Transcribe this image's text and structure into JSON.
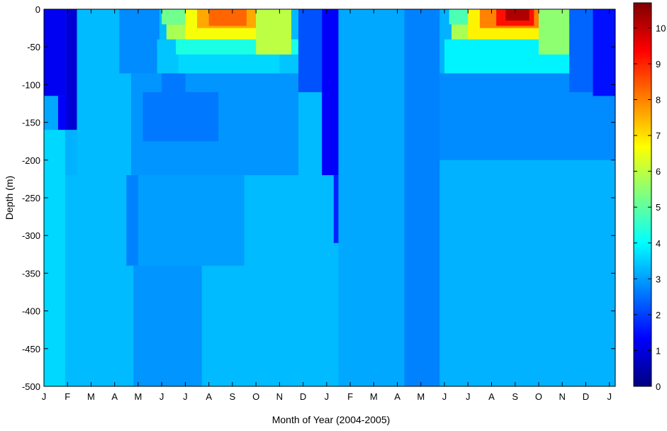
{
  "chart_data": {
    "type": "heatmap",
    "xlabel": "Month of Year (2004-2005)",
    "ylabel": "Depth (m)",
    "x_ticks": [
      "J",
      "F",
      "M",
      "A",
      "M",
      "J",
      "J",
      "A",
      "S",
      "O",
      "N",
      "D",
      "J",
      "F",
      "M",
      "A",
      "M",
      "J",
      "J",
      "A",
      "S",
      "O",
      "N",
      "D",
      "J"
    ],
    "x_range_months": [
      0,
      24.25
    ],
    "y_ticks": [
      0,
      -50,
      -100,
      -150,
      -200,
      -250,
      -300,
      -350,
      -400,
      -450,
      -500
    ],
    "y_range": [
      -500,
      0
    ],
    "colorbar": {
      "colormap": "jet",
      "range": [
        0,
        10.7
      ],
      "ticks": [
        0,
        1,
        2,
        3,
        4,
        5,
        6,
        7,
        8,
        9,
        10
      ]
    },
    "background_value": 3.3,
    "regions": [
      {
        "t0": 0.0,
        "t1": 0.95,
        "d0": 0,
        "d1": -115,
        "v": 1.2
      },
      {
        "t0": 0.0,
        "t1": 0.6,
        "d0": -115,
        "d1": -160,
        "v": 3.1
      },
      {
        "t0": 0.6,
        "t1": 1.0,
        "d0": -115,
        "d1": -160,
        "v": 1.3
      },
      {
        "t0": 0.95,
        "t1": 1.4,
        "d0": 0,
        "d1": -160,
        "v": 0.9
      },
      {
        "t0": 0.0,
        "t1": 0.9,
        "d0": -160,
        "d1": -500,
        "v": 3.6
      },
      {
        "t0": 0.9,
        "t1": 1.4,
        "d0": -160,
        "d1": -220,
        "v": 3.2
      },
      {
        "t0": 1.4,
        "t1": 3.2,
        "d0": 0,
        "d1": -500,
        "v": 3.3
      },
      {
        "t0": 3.2,
        "t1": 4.9,
        "d0": 0,
        "d1": -85,
        "v": 2.8
      },
      {
        "t0": 3.7,
        "t1": 10.8,
        "d0": -85,
        "d1": -220,
        "v": 2.9
      },
      {
        "t0": 3.5,
        "t1": 4.0,
        "d0": -220,
        "d1": -340,
        "v": 2.7
      },
      {
        "t0": 3.8,
        "t1": 6.7,
        "d0": -340,
        "d1": -500,
        "v": 2.9
      },
      {
        "t0": 4.0,
        "t1": 8.5,
        "d0": -220,
        "d1": -340,
        "v": 3.0
      },
      {
        "t0": 4.2,
        "t1": 7.4,
        "d0": -110,
        "d1": -175,
        "v": 2.6
      },
      {
        "t0": 4.8,
        "t1": 10.8,
        "d0": -40,
        "d1": -85,
        "v": 3.4
      },
      {
        "t0": 5.0,
        "t1": 6.0,
        "d0": -85,
        "d1": -110,
        "v": 2.6
      },
      {
        "t0": 5.7,
        "t1": 10.0,
        "d0": -60,
        "d1": -85,
        "v": 3.6
      },
      {
        "t0": 5.6,
        "t1": 11.0,
        "d0": -40,
        "d1": -60,
        "v": 4.3
      },
      {
        "t0": 5.2,
        "t1": 10.5,
        "d0": -20,
        "d1": -40,
        "v": 5.8
      },
      {
        "t0": 5.0,
        "t1": 10.0,
        "d0": 0,
        "d1": -20,
        "v": 5.2
      },
      {
        "t0": 6.0,
        "t1": 9.3,
        "d0": 0,
        "d1": -40,
        "v": 6.6
      },
      {
        "t0": 6.5,
        "t1": 9.0,
        "d0": 0,
        "d1": -25,
        "v": 7.6
      },
      {
        "t0": 7.0,
        "t1": 8.6,
        "d0": 0,
        "d1": -22,
        "v": 8.3
      },
      {
        "t0": 9.0,
        "t1": 10.5,
        "d0": 0,
        "d1": -60,
        "v": 6.0
      },
      {
        "t0": 10.8,
        "t1": 11.8,
        "d0": 0,
        "d1": -110,
        "v": 2.2
      },
      {
        "t0": 11.8,
        "t1": 12.5,
        "d0": 0,
        "d1": -220,
        "v": 1.3
      },
      {
        "t0": 12.3,
        "t1": 12.5,
        "d0": -220,
        "d1": -310,
        "v": 1.7
      },
      {
        "t0": 12.5,
        "t1": 15.3,
        "d0": 0,
        "d1": -500,
        "v": 3.1
      },
      {
        "t0": 15.3,
        "t1": 16.8,
        "d0": 0,
        "d1": -500,
        "v": 2.7
      },
      {
        "t0": 16.8,
        "t1": 24.25,
        "d0": -200,
        "d1": -500,
        "v": 3.2
      },
      {
        "t0": 16.8,
        "t1": 24.25,
        "d0": -85,
        "d1": -200,
        "v": 2.8
      },
      {
        "t0": 16.8,
        "t1": 24.25,
        "d0": 0,
        "d1": -85,
        "v": 3.2
      },
      {
        "t0": 17.0,
        "t1": 22.6,
        "d0": -40,
        "d1": -85,
        "v": 3.9
      },
      {
        "t0": 17.3,
        "t1": 22.6,
        "d0": -20,
        "d1": -40,
        "v": 5.8
      },
      {
        "t0": 17.2,
        "t1": 21.5,
        "d0": 0,
        "d1": -20,
        "v": 4.8
      },
      {
        "t0": 18.0,
        "t1": 21.0,
        "d0": 0,
        "d1": -40,
        "v": 6.8
      },
      {
        "t0": 18.5,
        "t1": 21.0,
        "d0": 0,
        "d1": -25,
        "v": 8.0
      },
      {
        "t0": 19.2,
        "t1": 20.8,
        "d0": 0,
        "d1": -22,
        "v": 9.2
      },
      {
        "t0": 19.6,
        "t1": 20.6,
        "d0": 0,
        "d1": -15,
        "v": 10.2
      },
      {
        "t0": 21.0,
        "t1": 22.3,
        "d0": 0,
        "d1": -60,
        "v": 5.5
      },
      {
        "t0": 22.3,
        "t1": 23.3,
        "d0": 0,
        "d1": -110,
        "v": 2.4
      },
      {
        "t0": 23.3,
        "t1": 24.25,
        "d0": 0,
        "d1": -115,
        "v": 1.5
      }
    ]
  }
}
